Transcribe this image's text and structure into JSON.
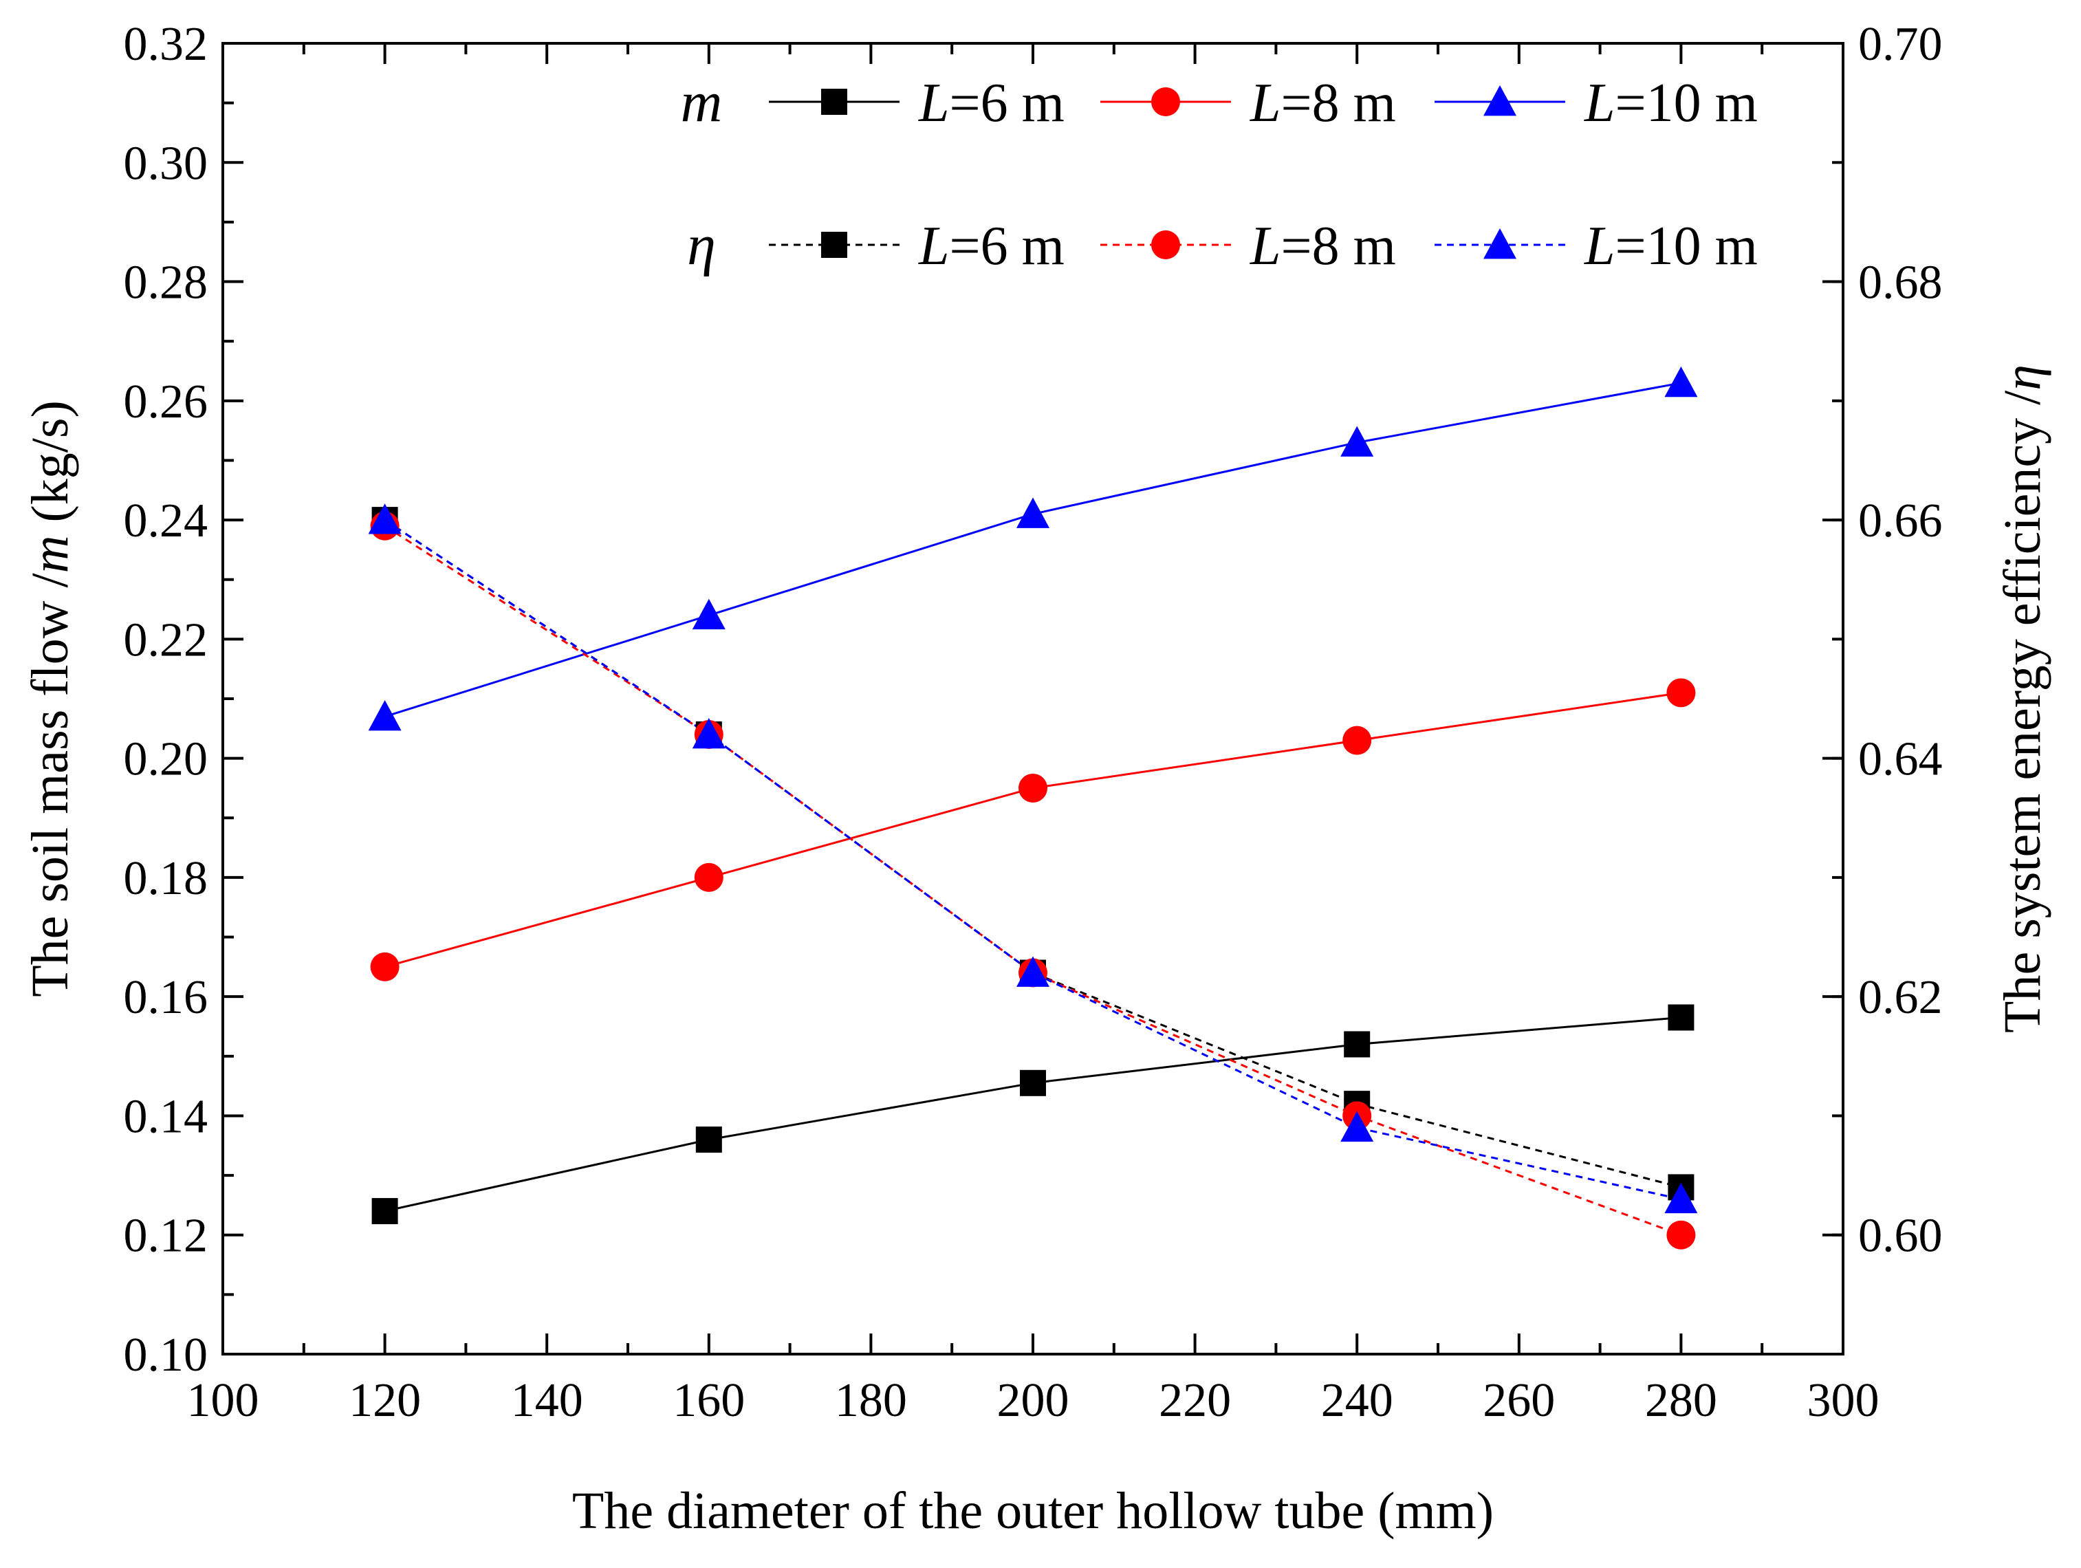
{
  "chart_data": {
    "type": "line",
    "title": "",
    "xlabel": "The diameter of  the outer hollow tube (mm)",
    "ylabel_left": {
      "prefix": "The soil mass flow /",
      "var": "m",
      "suffix": " (kg/s)"
    },
    "ylabel_right": {
      "prefix": "The system energy efficiency /",
      "var": "η",
      "suffix": ""
    },
    "xlim": [
      100,
      300
    ],
    "ylim_left": [
      0.1,
      0.32
    ],
    "ylim_right": [
      0.59,
      0.7
    ],
    "x_ticks": [
      "100",
      "120",
      "140",
      "160",
      "180",
      "200",
      "220",
      "240",
      "260",
      "280",
      "300"
    ],
    "y_left_ticks": [
      "0.10",
      "0.12",
      "0.14",
      "0.16",
      "0.18",
      "0.20",
      "0.22",
      "0.24",
      "0.26",
      "0.28",
      "0.30",
      "0.32"
    ],
    "y_right_ticks": [
      "0.60",
      "0.62",
      "0.64",
      "0.66",
      "0.68",
      "0.70"
    ],
    "x": [
      120,
      160,
      200,
      240,
      280
    ],
    "series": [
      {
        "name": "m, L=6 m",
        "group": "m",
        "label": "L=6 m",
        "axis": "left",
        "color": "#000000",
        "dashed": false,
        "marker": "square",
        "values": [
          0.124,
          0.136,
          0.1455,
          0.152,
          0.1565
        ]
      },
      {
        "name": "m, L=8 m",
        "group": "m",
        "label": "L=8 m",
        "axis": "left",
        "color": "#ff0000",
        "dashed": false,
        "marker": "circle",
        "values": [
          0.165,
          0.18,
          0.195,
          0.203,
          0.211
        ]
      },
      {
        "name": "m, L=10 m",
        "group": "m",
        "label": "L=10 m",
        "axis": "left",
        "color": "#0000ff",
        "dashed": false,
        "marker": "triangle",
        "values": [
          0.207,
          0.224,
          0.241,
          0.253,
          0.263
        ]
      },
      {
        "name": "η, L=6 m",
        "group": "η",
        "label": "L=6 m",
        "axis": "right",
        "color": "#000000",
        "dashed": true,
        "marker": "square",
        "values": [
          0.66,
          0.642,
          0.622,
          0.611,
          0.604
        ]
      },
      {
        "name": "η, L=8 m",
        "group": "η",
        "label": "L=8 m",
        "axis": "right",
        "color": "#ff0000",
        "dashed": true,
        "marker": "circle",
        "values": [
          0.6595,
          0.642,
          0.622,
          0.61,
          0.6
        ]
      },
      {
        "name": "η, L=10 m",
        "group": "η",
        "label": "L=10 m",
        "axis": "right",
        "color": "#0000ff",
        "dashed": true,
        "marker": "triangle",
        "values": [
          0.66,
          0.642,
          0.622,
          0.609,
          0.603
        ]
      }
    ],
    "legend": {
      "placement": "top",
      "row_symbols": [
        "m",
        "η"
      ]
    }
  }
}
